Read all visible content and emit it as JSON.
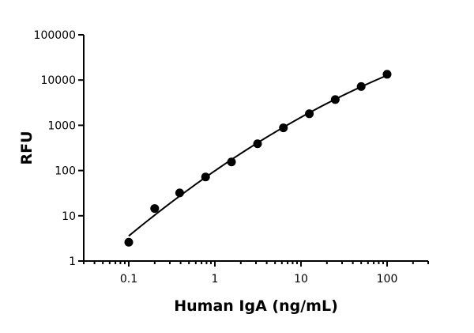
{
  "chart_data": {
    "type": "scatter",
    "title": "",
    "xlabel": "Human IgA (ng/mL)",
    "ylabel": "RFU",
    "x_scale": "log",
    "y_scale": "log",
    "xlim": [
      0.03,
      300
    ],
    "ylim": [
      1,
      100000
    ],
    "x_ticks": [
      0.1,
      1,
      10,
      100
    ],
    "x_tick_labels": [
      "0.1",
      "1",
      "10",
      "100"
    ],
    "y_ticks": [
      1,
      10,
      100,
      1000,
      10000,
      100000
    ],
    "y_tick_labels": [
      "1",
      "10",
      "100",
      "1000",
      "10000",
      "100000"
    ],
    "grid": false,
    "legend": false,
    "series": [
      {
        "x": [
          0.1,
          0.2,
          0.39,
          0.78,
          1.56,
          3.13,
          6.25,
          12.5,
          25,
          50,
          100
        ],
        "y": [
          2.6,
          14.5,
          32,
          72,
          155,
          390,
          880,
          1800,
          3700,
          7200,
          13400
        ],
        "fit": "curve"
      }
    ]
  }
}
